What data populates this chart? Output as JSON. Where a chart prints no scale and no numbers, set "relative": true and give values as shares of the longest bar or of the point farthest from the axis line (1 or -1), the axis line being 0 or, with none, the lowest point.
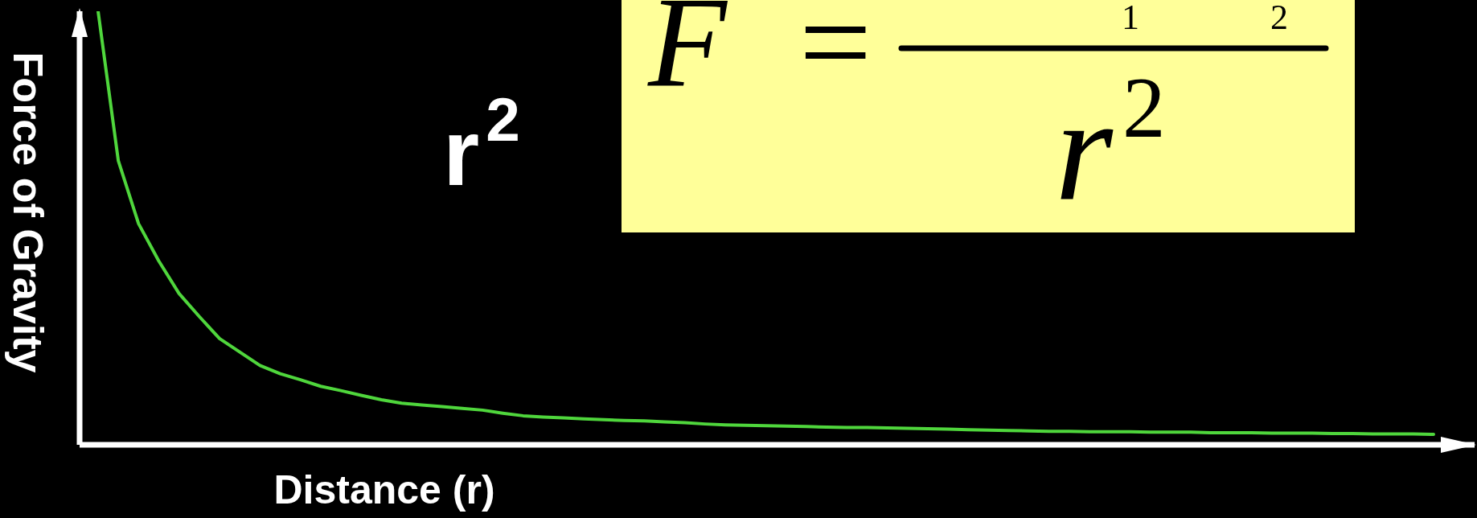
{
  "chart_data": {
    "type": "line",
    "xlabel": "Distance (r)",
    "ylabel": "Force of Gravity",
    "relative": true,
    "categories": [
      null,
      null,
      null,
      null,
      null,
      null,
      null,
      null,
      null,
      null,
      null,
      null,
      null,
      null,
      null,
      null,
      null,
      null,
      null,
      null,
      null,
      null,
      null,
      null,
      null,
      null,
      null,
      null,
      null,
      null,
      null,
      null,
      null,
      null,
      null,
      null,
      null,
      null,
      null,
      null,
      null,
      null,
      null,
      null,
      null,
      null,
      null,
      null,
      null,
      null,
      null,
      null,
      null,
      null,
      null,
      null,
      null,
      null,
      null,
      null,
      null,
      null,
      null,
      null,
      null,
      null,
      null
    ],
    "color": "#4fd63c",
    "values": [
      1,
      0.655,
      0.51,
      0.424,
      0.349,
      0.296,
      0.245,
      0.214,
      0.183,
      0.164,
      0.15,
      0.135,
      0.125,
      0.114,
      0.104,
      0.096,
      0.092,
      0.088,
      0.084,
      0.08,
      0.073,
      0.067,
      0.064,
      0.062,
      0.06,
      0.058,
      0.056,
      0.055,
      0.053,
      0.051,
      0.048,
      0.046,
      0.045,
      0.044,
      0.043,
      0.042,
      0.041,
      0.04,
      0.04,
      0.039,
      0.038,
      0.037,
      0.036,
      0.035,
      0.034,
      0.033,
      0.032,
      0.031,
      0.031,
      0.03,
      0.03,
      0.03,
      0.029,
      0.029,
      0.029,
      0.028,
      0.028,
      0.028,
      0.027,
      0.027,
      0.027,
      0.026,
      0.026,
      0.025,
      0.025,
      0.025,
      0.024
    ],
    "annotations": [
      "r$^{2}$",
      "F =",
      "1",
      "2",
      "r$^{2}$"
    ]
  }
}
